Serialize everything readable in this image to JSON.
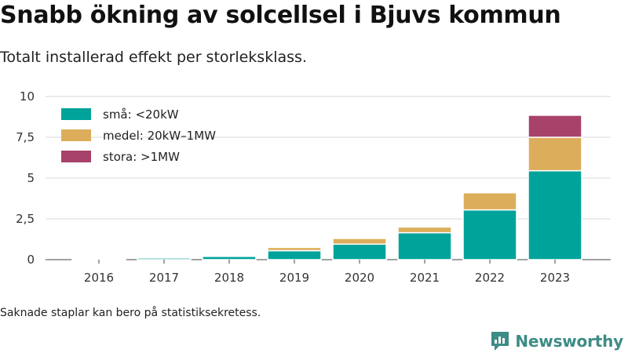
{
  "title": "Snabb ökning av solcellsel i Bjuvs kommun",
  "subtitle": "Totalt installerad effekt per storleksklass.",
  "footnote": "Saknade staplar kan bero på statistiksekretess.",
  "brand": {
    "name": "Newsworthy",
    "icon": "newsworthy-logo-icon",
    "color": "#3d8c85"
  },
  "chart_data": {
    "type": "bar",
    "stacked": true,
    "categories": [
      "2016",
      "2017",
      "2018",
      "2019",
      "2020",
      "2021",
      "2022",
      "2023"
    ],
    "series": [
      {
        "name": "små: <20kW",
        "color": "#00a39a",
        "values": [
          0.02,
          0.1,
          0.2,
          0.55,
          0.95,
          1.65,
          3.05,
          5.45
        ]
      },
      {
        "name": "medel: 20kW–1MW",
        "color": "#dcae5b",
        "values": [
          0,
          0,
          0,
          0.2,
          0.35,
          0.35,
          1.05,
          2.05
        ]
      },
      {
        "name": "stora: >1MW",
        "color": "#a7436a",
        "values": [
          0,
          0,
          0,
          0,
          0,
          0,
          0,
          1.35
        ]
      }
    ],
    "ylim": [
      0,
      10
    ],
    "yticks": [
      0,
      2.5,
      5,
      7.5,
      10
    ],
    "ytick_labels": [
      "0",
      "2,5",
      "5",
      "7,5",
      "10"
    ],
    "grid": true,
    "legend_position": "top-left"
  }
}
